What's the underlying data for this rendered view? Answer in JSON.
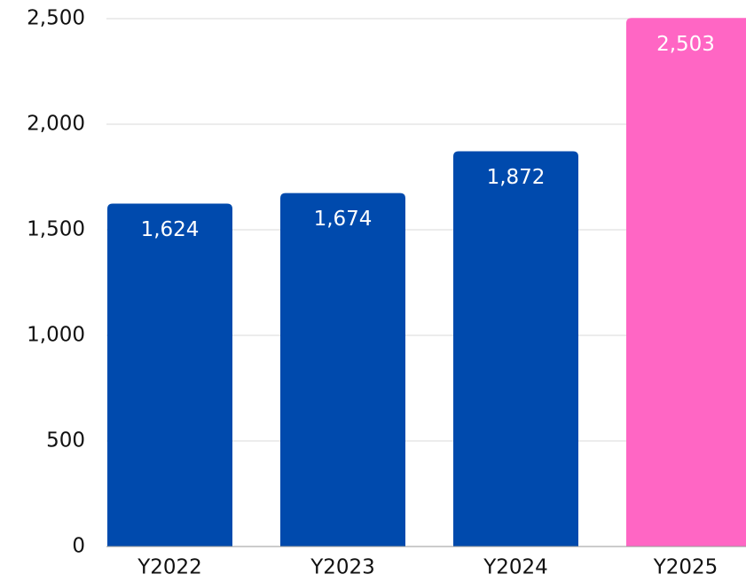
{
  "chart_data": {
    "type": "bar",
    "categories": [
      "Y2022",
      "Y2023",
      "Y2024",
      "Y2025"
    ],
    "values": [
      1624,
      1674,
      1872,
      2503
    ],
    "value_labels": [
      "1,624",
      "1,674",
      "1,872",
      "2,503"
    ],
    "colors": [
      "#004aad",
      "#004aad",
      "#004aad",
      "#ff66c4"
    ],
    "ylim": [
      0,
      2500
    ],
    "yticks": [
      0,
      500,
      {
        "value": 1000,
        "label": "1,000"
      },
      {
        "value": 1500,
        "label": "1,500"
      },
      {
        "value": 2000,
        "label": "2,000"
      },
      {
        "value": 2500,
        "label": "2,500"
      }
    ],
    "grid": true
  }
}
